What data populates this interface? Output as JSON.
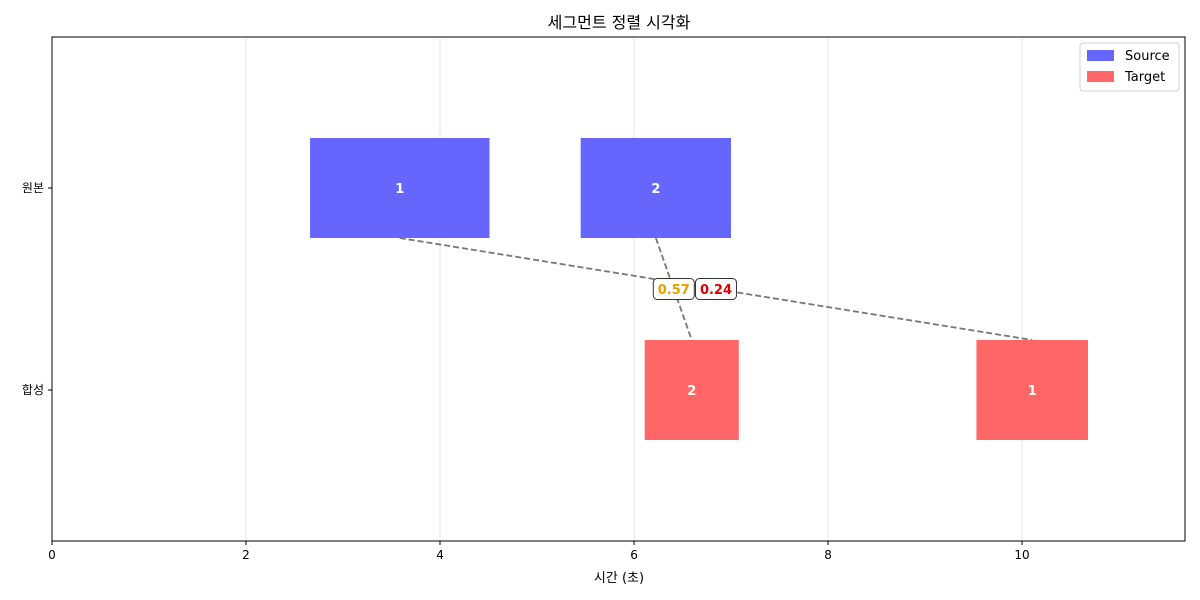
{
  "chart_data": {
    "type": "bar",
    "title": "세그먼트 정렬 시각화",
    "xlabel": "시간 (초)",
    "ylabel": "",
    "xlim": [
      0,
      11.68
    ],
    "xticks": [
      0,
      2,
      4,
      6,
      8,
      10
    ],
    "rows": [
      "원본",
      "합성"
    ],
    "grid": "x",
    "legend_position": "top-right",
    "series": [
      {
        "name": "Source",
        "row": "원본",
        "color": "#6666ff",
        "segments": [
          {
            "label": "1",
            "start": 2.66,
            "end": 4.51
          },
          {
            "label": "2",
            "start": 5.45,
            "end": 7.0
          }
        ]
      },
      {
        "name": "Target",
        "row": "합성",
        "color": "#ff6666",
        "segments": [
          {
            "label": "2",
            "start": 6.11,
            "end": 7.08
          },
          {
            "label": "1",
            "start": 9.53,
            "end": 10.68
          }
        ]
      }
    ],
    "alignments": [
      {
        "source": "1",
        "target": "1",
        "score": "0.24",
        "score_color": "#dd0000"
      },
      {
        "source": "2",
        "target": "2",
        "score": "0.57",
        "score_color": "#e8a100"
      }
    ]
  }
}
